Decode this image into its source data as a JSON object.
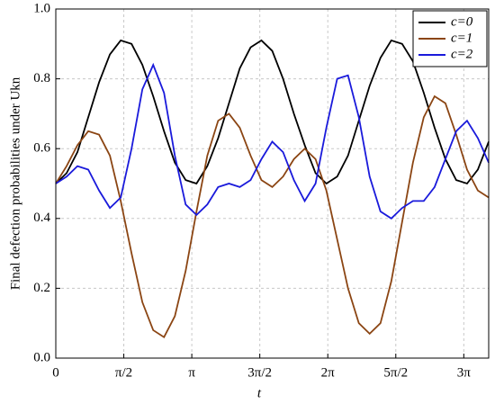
{
  "chart_data": {
    "type": "line",
    "xlabel": "t",
    "ylabel": "Final defection probabilities under Ukn",
    "x": [
      0,
      0.25,
      0.5,
      0.75,
      1,
      1.25,
      1.5,
      1.75,
      2,
      2.25,
      2.5,
      2.75,
      3,
      3.25,
      3.5,
      3.75,
      4,
      4.25,
      4.5,
      4.75,
      5,
      5.25,
      5.5,
      5.75,
      6,
      6.25,
      6.5,
      6.75,
      7,
      7.25,
      7.5,
      7.75,
      8,
      8.25,
      8.5,
      8.75,
      9,
      9.25,
      9.5,
      9.75,
      10
    ],
    "series": [
      {
        "name": "c=0",
        "color": "#000000",
        "values": [
          0.5,
          0.53,
          0.59,
          0.69,
          0.79,
          0.87,
          0.91,
          0.9,
          0.84,
          0.75,
          0.65,
          0.56,
          0.51,
          0.5,
          0.55,
          0.63,
          0.73,
          0.83,
          0.89,
          0.91,
          0.88,
          0.8,
          0.7,
          0.61,
          0.53,
          0.5,
          0.52,
          0.58,
          0.68,
          0.78,
          0.86,
          0.91,
          0.9,
          0.85,
          0.76,
          0.66,
          0.57,
          0.51,
          0.5,
          0.54,
          0.62
        ]
      },
      {
        "name": "c=1",
        "color": "#8b4513",
        "values": [
          0.5,
          0.55,
          0.61,
          0.65,
          0.64,
          0.58,
          0.45,
          0.3,
          0.16,
          0.08,
          0.06,
          0.12,
          0.25,
          0.42,
          0.58,
          0.68,
          0.7,
          0.66,
          0.58,
          0.51,
          0.49,
          0.52,
          0.57,
          0.6,
          0.57,
          0.48,
          0.34,
          0.2,
          0.1,
          0.07,
          0.1,
          0.22,
          0.39,
          0.56,
          0.69,
          0.75,
          0.73,
          0.64,
          0.54,
          0.48,
          0.46
        ]
      },
      {
        "name": "c=2",
        "color": "#1a1adb",
        "values": [
          0.5,
          0.52,
          0.55,
          0.54,
          0.48,
          0.43,
          0.46,
          0.6,
          0.77,
          0.84,
          0.76,
          0.58,
          0.44,
          0.41,
          0.44,
          0.49,
          0.5,
          0.49,
          0.51,
          0.57,
          0.62,
          0.59,
          0.51,
          0.45,
          0.5,
          0.66,
          0.8,
          0.81,
          0.69,
          0.52,
          0.42,
          0.4,
          0.43,
          0.45,
          0.45,
          0.49,
          0.57,
          0.65,
          0.68,
          0.63,
          0.56
        ]
      }
    ],
    "xlim": [
      0,
      10
    ],
    "xticks": [
      0,
      {
        "value": 1.5708,
        "label": "π/2"
      },
      {
        "value": 3.1416,
        "label": "π"
      },
      {
        "value": 4.7124,
        "label": "3π/2"
      },
      {
        "value": 6.2832,
        "label": "2π"
      },
      {
        "value": 7.854,
        "label": "5π/2"
      },
      {
        "value": 9.4248,
        "label": "3π"
      }
    ],
    "ylim": [
      0,
      1
    ],
    "yticks": [
      {
        "value": 0,
        "label": "0.0"
      },
      0.2,
      0.4,
      0.6,
      0.8,
      {
        "value": 1,
        "label": "1.0"
      }
    ],
    "grid": true,
    "legend": "upper right"
  }
}
